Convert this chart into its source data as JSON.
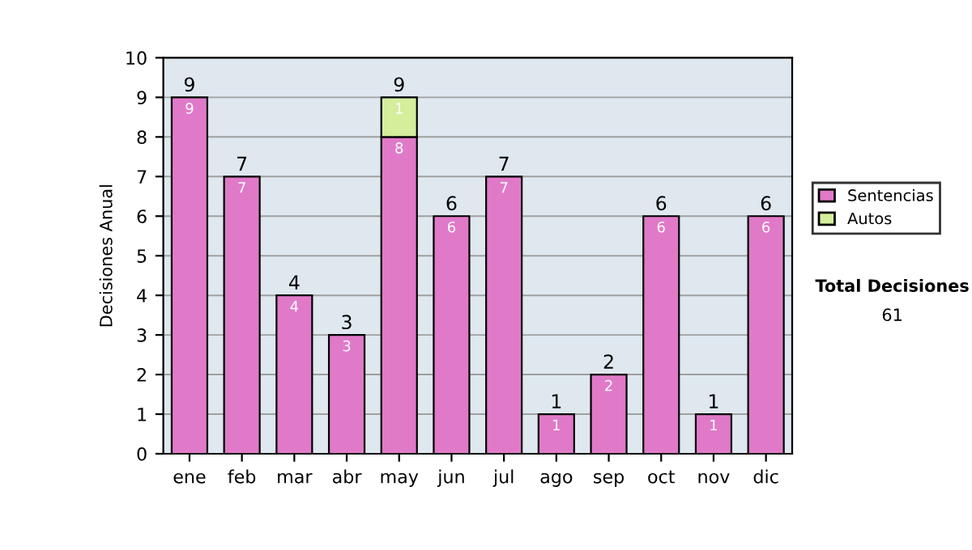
{
  "chart_data": {
    "type": "bar",
    "ylabel": "Decisiones Anual",
    "categories": [
      "ene",
      "feb",
      "mar",
      "abr",
      "may",
      "jun",
      "jul",
      "ago",
      "sep",
      "oct",
      "nov",
      "dic"
    ],
    "stacked": true,
    "series": [
      {
        "name": "Sentencias",
        "color": "#e07ac8",
        "values": [
          9,
          7,
          4,
          3,
          8,
          6,
          7,
          1,
          2,
          6,
          1,
          6
        ],
        "value_labels": [
          "9",
          "7",
          "4",
          "3",
          "8",
          "6",
          "7",
          "1",
          "2",
          "6",
          "1",
          "6"
        ]
      },
      {
        "name": "Autos",
        "color": "#d4ee9c",
        "values": [
          null,
          null,
          null,
          null,
          1,
          null,
          null,
          null,
          null,
          null,
          null,
          null
        ],
        "value_labels": [
          null,
          null,
          null,
          null,
          "1",
          null,
          null,
          null,
          null,
          null,
          null,
          null
        ]
      }
    ],
    "totals": [
      "9",
      "7",
      "4",
      "3",
      "9",
      "6",
      "7",
      "1",
      "2",
      "6",
      "1",
      "6"
    ],
    "ylim": [
      0,
      10
    ],
    "yticks": [
      0,
      1,
      2,
      3,
      4,
      5,
      6,
      7,
      8,
      9,
      10
    ],
    "grid": "y",
    "legend": "right",
    "annotations": [
      "Total Decisiones",
      "61"
    ]
  }
}
